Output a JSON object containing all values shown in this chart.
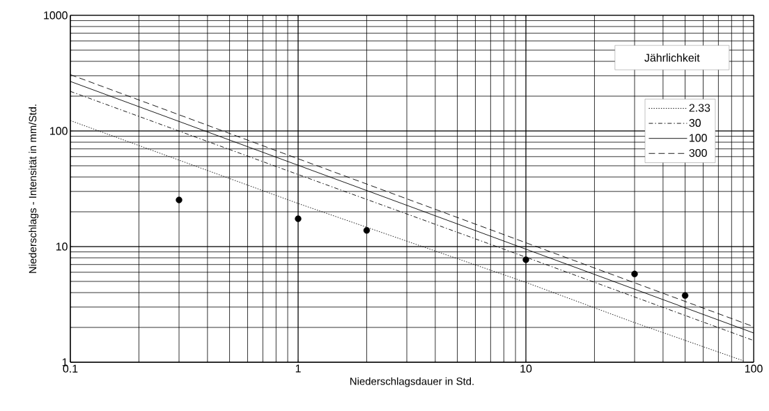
{
  "chart_data": {
    "type": "line",
    "xlabel": "Niederschlagsdauer in Std.",
    "ylabel": "Niederschlags - Intensität in mm/Std.",
    "legend_title": "Jährlichkeit",
    "log": "xy",
    "xlim": [
      0.1,
      100
    ],
    "ylim": [
      1,
      1000
    ],
    "xticks": [
      0.1,
      1,
      10,
      100
    ],
    "yticks": [
      1,
      10,
      100,
      1000
    ],
    "grid": true,
    "legend": "top right",
    "series": [
      {
        "name": "2.33",
        "type": "line",
        "line_style": "dotted",
        "marker": "none",
        "color": "#000000",
        "x": [
          0.1,
          1,
          10,
          30,
          90
        ],
        "values": [
          123,
          23.6,
          4.9,
          2.2,
          1.03
        ]
      },
      {
        "name": "30",
        "type": "line",
        "line_style": "dashdot",
        "marker": "none",
        "color": "#000000",
        "x": [
          0.1,
          1,
          10,
          100
        ],
        "values": [
          220,
          42,
          8.1,
          1.54
        ]
      },
      {
        "name": "100",
        "type": "line",
        "line_style": "solid",
        "marker": "none",
        "color": "#000000",
        "x": [
          0.1,
          1,
          10,
          100
        ],
        "values": [
          268,
          50.5,
          9.5,
          1.79
        ]
      },
      {
        "name": "300",
        "type": "line",
        "line_style": "dashed",
        "marker": "none",
        "color": "#000000",
        "x": [
          0.1,
          1,
          10,
          100
        ],
        "values": [
          307,
          57.5,
          10.8,
          2.03
        ]
      },
      {
        "type": "scatter",
        "marker": "circle",
        "color": "#000000",
        "x": [
          0.3,
          1,
          2,
          10,
          30,
          50
        ],
        "values": [
          25.3,
          17.4,
          13.8,
          7.7,
          5.8,
          3.78
        ]
      }
    ]
  }
}
